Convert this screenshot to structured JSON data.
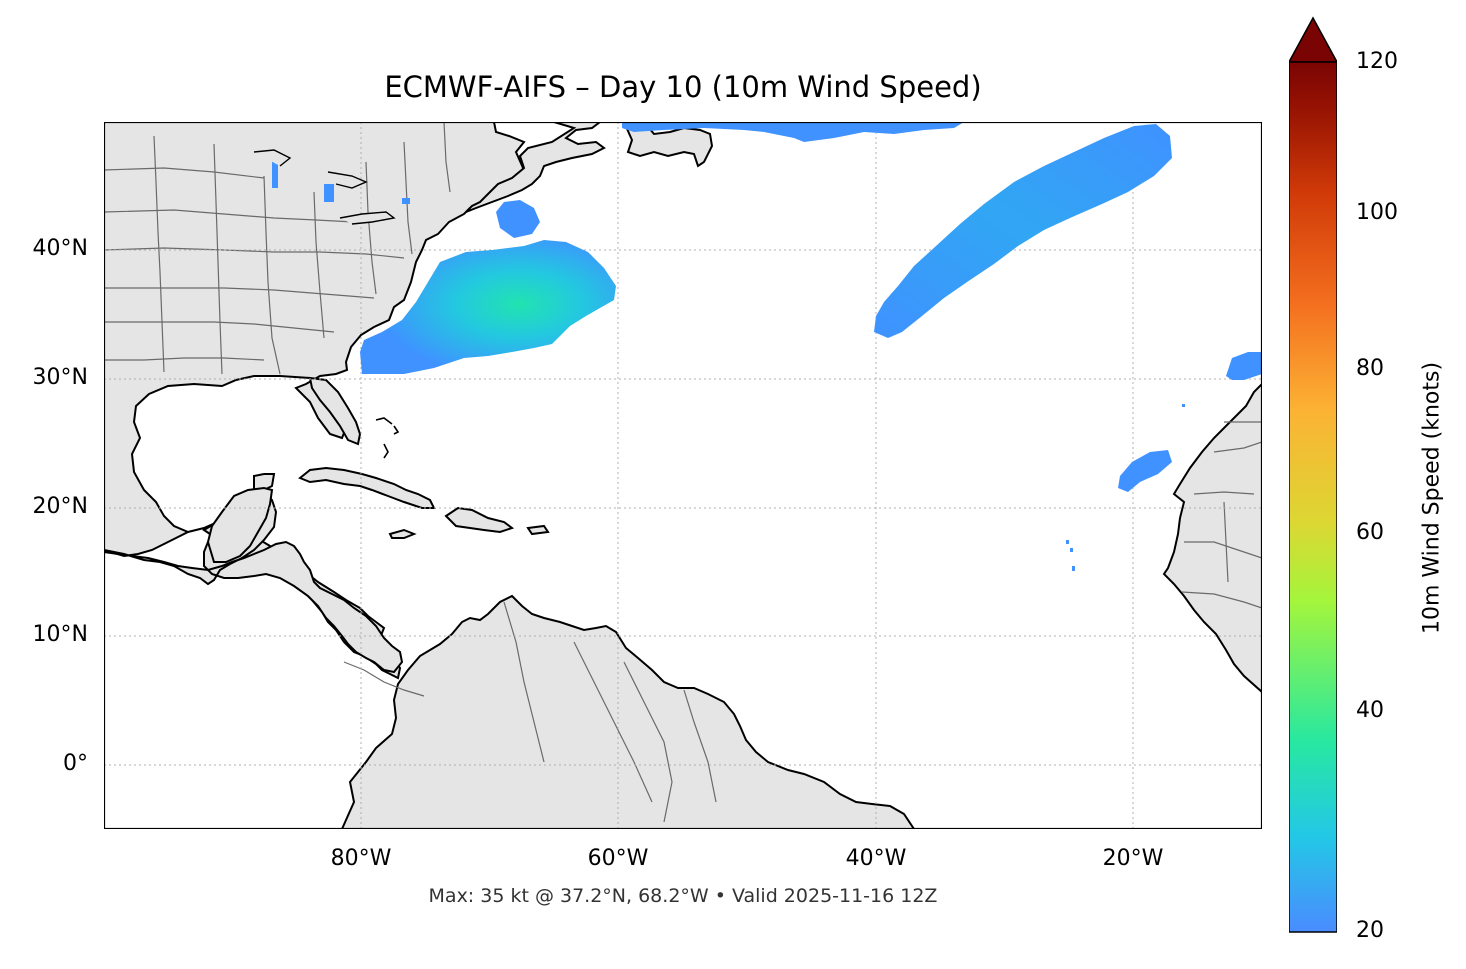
{
  "title": "ECMWF-AIFS – Day 10 (10m Wind Speed)",
  "footer": "Max: 35 kt @ 37.2°N, 68.2°W • Valid 2025-11-16 12Z",
  "map": {
    "extent": {
      "lon": [
        -100,
        -10
      ],
      "lat": [
        -5,
        50
      ]
    },
    "lat_ticks": [
      {
        "value": 40,
        "label": "40°N"
      },
      {
        "value": 30,
        "label": "30°N"
      },
      {
        "value": 20,
        "label": "20°N"
      },
      {
        "value": 10,
        "label": "10°N"
      },
      {
        "value": 0,
        "label": "0°"
      }
    ],
    "lon_ticks": [
      {
        "value": -80,
        "label": "80°W"
      },
      {
        "value": -60,
        "label": "60°W"
      },
      {
        "value": -40,
        "label": "40°W"
      },
      {
        "value": -20,
        "label": "20°W"
      }
    ],
    "gridlines": true,
    "land_color": "#e5e5e5",
    "wind_areas": [
      "US East Coast offshore wind maximum near 37°N 68°W",
      "NE-SW elongated band from 34°N 39°W to 47°N 18°W",
      "Small patch near 23°N 25°W",
      "Small patch near 31°N 12°W",
      "Strip along northern edge near 50°N 60°W–35°W"
    ]
  },
  "colorbar": {
    "label": "10m Wind Speed (knots)",
    "min": 20,
    "max": 120,
    "extend": "max",
    "ticks": [
      {
        "value": 120,
        "label": "120"
      },
      {
        "value": 100,
        "label": "100"
      },
      {
        "value": 80,
        "label": "80"
      },
      {
        "value": 60,
        "label": "60"
      },
      {
        "value": 40,
        "label": "40"
      },
      {
        "value": 20,
        "label": "20"
      }
    ],
    "colormap": "turbo",
    "colors": [
      "#4a8cff",
      "#23c8e6",
      "#28e8a0",
      "#a4f53c",
      "#dcd733",
      "#fcb234",
      "#f4701f",
      "#d03a08",
      "#9a1503",
      "#7a0403"
    ]
  },
  "max_point": {
    "lat": 37.2,
    "lon": -68.2,
    "value_kt": 35
  }
}
